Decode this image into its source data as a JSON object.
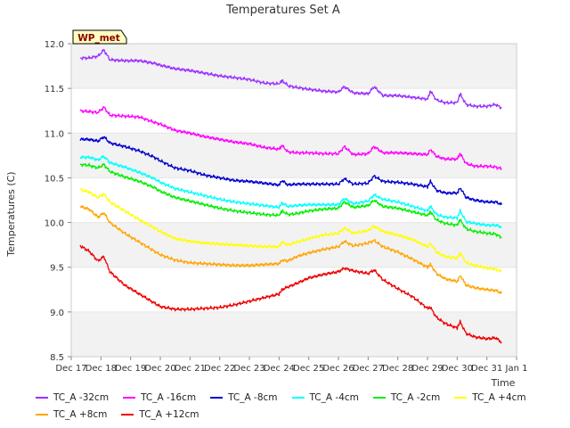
{
  "chart_data": {
    "type": "line",
    "title": "Temperatures Set A",
    "xlabel": "Time",
    "ylabel": "Temperatures (C)",
    "annotation": "WP_met",
    "ylim": [
      8.5,
      12.0
    ],
    "yticks": [
      "8.5",
      "9.0",
      "9.5",
      "10.0",
      "10.5",
      "11.0",
      "11.5",
      "12.0"
    ],
    "xlim_days": [
      0,
      15
    ],
    "xticks": [
      "Dec 17",
      "Dec 18",
      "Dec 19",
      "Dec 20",
      "Dec 21",
      "Dec 22",
      "Dec 23",
      "Dec 24",
      "Dec 25",
      "Dec 26",
      "Dec 27",
      "Dec 28",
      "Dec 29",
      "Dec 30",
      "Dec 31",
      "Jan 1"
    ],
    "grid": "alternating horizontal bands",
    "legend_position": "bottom",
    "series": [
      {
        "name": "TC_A -32cm",
        "color": "#9b30ff",
        "x": [
          0.3,
          0.6,
          0.9,
          1.1,
          1.3,
          1.8,
          2.3,
          2.8,
          3.0,
          3.5,
          4.0,
          4.5,
          5.0,
          5.5,
          6.0,
          6.5,
          7.0,
          7.1,
          7.3,
          7.6,
          8.0,
          8.5,
          9.0,
          9.2,
          9.5,
          10.0,
          10.2,
          10.5,
          11.0,
          11.5,
          12.0,
          12.1,
          12.3,
          12.6,
          13.0,
          13.1,
          13.3,
          13.6,
          14.0,
          14.3,
          14.5
        ],
        "y": [
          11.84,
          11.84,
          11.86,
          11.93,
          11.82,
          11.81,
          11.81,
          11.78,
          11.76,
          11.72,
          11.7,
          11.67,
          11.64,
          11.62,
          11.6,
          11.56,
          11.55,
          11.59,
          11.53,
          11.51,
          11.49,
          11.47,
          11.46,
          11.52,
          11.45,
          11.44,
          11.52,
          11.42,
          11.42,
          11.4,
          11.38,
          11.47,
          11.37,
          11.34,
          11.34,
          11.44,
          11.32,
          11.3,
          11.3,
          11.32,
          11.28
        ]
      },
      {
        "name": "TC_A -16cm",
        "color": "#ff00ff",
        "x": [
          0.3,
          0.6,
          0.9,
          1.1,
          1.3,
          1.8,
          2.3,
          2.8,
          3.0,
          3.5,
          4.0,
          4.5,
          5.0,
          5.5,
          6.0,
          6.5,
          7.0,
          7.1,
          7.3,
          7.6,
          8.0,
          8.5,
          9.0,
          9.2,
          9.5,
          10.0,
          10.2,
          10.5,
          11.0,
          11.5,
          12.0,
          12.1,
          12.3,
          12.6,
          13.0,
          13.1,
          13.3,
          13.6,
          14.0,
          14.3,
          14.5
        ],
        "y": [
          11.25,
          11.24,
          11.23,
          11.29,
          11.2,
          11.19,
          11.18,
          11.12,
          11.1,
          11.03,
          11.0,
          10.96,
          10.93,
          10.9,
          10.88,
          10.84,
          10.82,
          10.86,
          10.79,
          10.78,
          10.78,
          10.77,
          10.77,
          10.85,
          10.76,
          10.77,
          10.85,
          10.78,
          10.78,
          10.77,
          10.76,
          10.82,
          10.74,
          10.71,
          10.71,
          10.77,
          10.66,
          10.63,
          10.63,
          10.62,
          10.6
        ]
      },
      {
        "name": "TC_A -8cm",
        "color": "#0000cd",
        "x": [
          0.3,
          0.6,
          0.9,
          1.1,
          1.3,
          1.8,
          2.3,
          2.8,
          3.0,
          3.5,
          4.0,
          4.5,
          5.0,
          5.5,
          6.0,
          6.5,
          7.0,
          7.1,
          7.3,
          7.6,
          8.0,
          8.5,
          9.0,
          9.2,
          9.5,
          10.0,
          10.2,
          10.5,
          11.0,
          11.5,
          12.0,
          12.1,
          12.3,
          12.6,
          13.0,
          13.1,
          13.3,
          13.6,
          14.0,
          14.3,
          14.5
        ],
        "y": [
          10.93,
          10.93,
          10.91,
          10.96,
          10.89,
          10.85,
          10.8,
          10.73,
          10.69,
          10.61,
          10.58,
          10.53,
          10.5,
          10.47,
          10.46,
          10.44,
          10.42,
          10.47,
          10.42,
          10.43,
          10.43,
          10.43,
          10.43,
          10.49,
          10.43,
          10.44,
          10.52,
          10.46,
          10.45,
          10.43,
          10.4,
          10.46,
          10.36,
          10.33,
          10.33,
          10.39,
          10.28,
          10.25,
          10.23,
          10.23,
          10.2
        ]
      },
      {
        "name": "TC_A -4cm",
        "color": "#00ffff",
        "x": [
          0.3,
          0.6,
          0.9,
          1.1,
          1.3,
          1.8,
          2.3,
          2.8,
          3.0,
          3.5,
          4.0,
          4.5,
          5.0,
          5.5,
          6.0,
          6.5,
          7.0,
          7.1,
          7.3,
          7.6,
          8.0,
          8.5,
          9.0,
          9.2,
          9.5,
          10.0,
          10.2,
          10.5,
          11.0,
          11.5,
          12.0,
          12.1,
          12.3,
          12.6,
          13.0,
          13.1,
          13.3,
          13.6,
          14.0,
          14.3,
          14.5
        ],
        "y": [
          10.73,
          10.73,
          10.7,
          10.74,
          10.67,
          10.62,
          10.56,
          10.49,
          10.45,
          10.38,
          10.34,
          10.3,
          10.26,
          10.23,
          10.21,
          10.19,
          10.17,
          10.22,
          10.18,
          10.19,
          10.2,
          10.2,
          10.2,
          10.27,
          10.21,
          10.24,
          10.31,
          10.26,
          10.23,
          10.18,
          10.13,
          10.18,
          10.09,
          10.06,
          10.05,
          10.13,
          10.01,
          9.99,
          9.97,
          9.97,
          9.95
        ]
      },
      {
        "name": "TC_A -2cm",
        "color": "#00ee00",
        "x": [
          0.3,
          0.6,
          0.9,
          1.1,
          1.3,
          1.8,
          2.3,
          2.8,
          3.0,
          3.5,
          4.0,
          4.5,
          5.0,
          5.5,
          6.0,
          6.5,
          7.0,
          7.1,
          7.3,
          7.6,
          8.0,
          8.5,
          9.0,
          9.2,
          9.5,
          10.0,
          10.2,
          10.5,
          11.0,
          11.5,
          12.0,
          12.1,
          12.3,
          12.6,
          13.0,
          13.1,
          13.3,
          13.6,
          14.0,
          14.3,
          14.5
        ],
        "y": [
          10.65,
          10.64,
          10.61,
          10.65,
          10.57,
          10.51,
          10.46,
          10.39,
          10.35,
          10.28,
          10.24,
          10.2,
          10.16,
          10.13,
          10.11,
          10.09,
          10.08,
          10.13,
          10.09,
          10.1,
          10.13,
          10.15,
          10.16,
          10.23,
          10.17,
          10.19,
          10.25,
          10.18,
          10.16,
          10.12,
          10.08,
          10.12,
          10.03,
          9.99,
          9.97,
          10.03,
          9.93,
          9.9,
          9.88,
          9.87,
          9.83
        ]
      },
      {
        "name": "TC_A +4cm",
        "color": "#ffff00",
        "x": [
          0.3,
          0.6,
          0.9,
          1.1,
          1.3,
          1.8,
          2.3,
          2.8,
          3.0,
          3.5,
          4.0,
          4.5,
          5.0,
          5.5,
          6.0,
          6.5,
          7.0,
          7.1,
          7.3,
          7.6,
          8.0,
          8.5,
          9.0,
          9.2,
          9.5,
          10.0,
          10.2,
          10.5,
          11.0,
          11.5,
          12.0,
          12.1,
          12.3,
          12.6,
          13.0,
          13.1,
          13.3,
          13.6,
          14.0,
          14.3,
          14.5
        ],
        "y": [
          10.37,
          10.34,
          10.28,
          10.32,
          10.23,
          10.13,
          10.03,
          9.94,
          9.9,
          9.82,
          9.79,
          9.77,
          9.76,
          9.75,
          9.74,
          9.73,
          9.73,
          9.78,
          9.75,
          9.78,
          9.82,
          9.86,
          9.88,
          9.94,
          9.88,
          9.91,
          9.96,
          9.9,
          9.86,
          9.81,
          9.73,
          9.77,
          9.67,
          9.62,
          9.6,
          9.66,
          9.55,
          9.52,
          9.49,
          9.48,
          9.45
        ]
      },
      {
        "name": "TC_A +8cm",
        "color": "#ffa500",
        "x": [
          0.3,
          0.6,
          0.9,
          1.1,
          1.3,
          1.8,
          2.3,
          2.8,
          3.0,
          3.5,
          4.0,
          4.5,
          5.0,
          5.5,
          6.0,
          6.5,
          7.0,
          7.1,
          7.3,
          7.6,
          8.0,
          8.5,
          9.0,
          9.2,
          9.5,
          10.0,
          10.2,
          10.5,
          11.0,
          11.5,
          12.0,
          12.1,
          12.3,
          12.6,
          13.0,
          13.1,
          13.3,
          13.6,
          14.0,
          14.3,
          14.5
        ],
        "y": [
          10.18,
          10.15,
          10.06,
          10.11,
          10.0,
          9.88,
          9.78,
          9.68,
          9.64,
          9.58,
          9.55,
          9.54,
          9.53,
          9.52,
          9.52,
          9.53,
          9.54,
          9.58,
          9.57,
          9.62,
          9.66,
          9.7,
          9.73,
          9.79,
          9.74,
          9.77,
          9.8,
          9.73,
          9.67,
          9.59,
          9.5,
          9.53,
          9.43,
          9.37,
          9.34,
          9.41,
          9.3,
          9.27,
          9.25,
          9.24,
          9.21
        ]
      },
      {
        "name": "TC_A +12cm",
        "color": "#ee0000",
        "x": [
          0.3,
          0.6,
          0.9,
          1.1,
          1.3,
          1.8,
          2.3,
          2.8,
          3.0,
          3.5,
          4.0,
          4.5,
          5.0,
          5.5,
          6.0,
          6.5,
          7.0,
          7.1,
          7.3,
          7.6,
          8.0,
          8.5,
          9.0,
          9.2,
          9.5,
          10.0,
          10.2,
          10.5,
          11.0,
          11.5,
          12.0,
          12.1,
          12.3,
          12.6,
          13.0,
          13.1,
          13.3,
          13.6,
          14.0,
          14.3,
          14.5
        ],
        "y": [
          9.74,
          9.68,
          9.57,
          9.62,
          9.45,
          9.3,
          9.2,
          9.1,
          9.06,
          9.03,
          9.03,
          9.04,
          9.05,
          9.08,
          9.12,
          9.16,
          9.2,
          9.25,
          9.28,
          9.32,
          9.38,
          9.42,
          9.45,
          9.49,
          9.46,
          9.43,
          9.47,
          9.36,
          9.26,
          9.17,
          9.04,
          9.05,
          8.94,
          8.87,
          8.82,
          8.89,
          8.76,
          8.72,
          8.7,
          8.71,
          8.66
        ]
      }
    ]
  }
}
